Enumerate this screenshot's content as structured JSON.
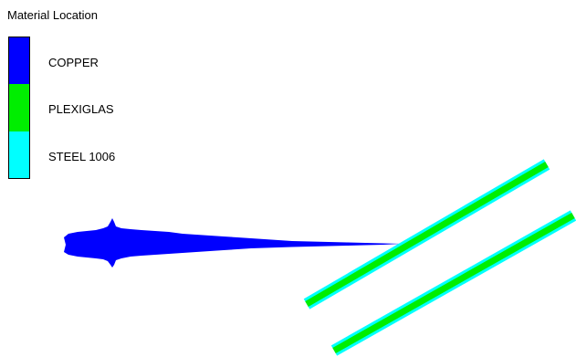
{
  "legend": {
    "title": "Material Location",
    "items": [
      {
        "label": "COPPER",
        "color": "#0000ff"
      },
      {
        "label": "PLEXIGLAS",
        "color": "#00ee00"
      },
      {
        "label": "STEEL 1006",
        "color": "#00ffff"
      }
    ]
  },
  "colors": {
    "background": "#ffffff",
    "jet": "#0000ff",
    "plate_core": "#00ee00",
    "plate_edge": "#00ffff"
  },
  "scene": {
    "objects": [
      {
        "name": "copper-jet",
        "material": "COPPER"
      },
      {
        "name": "upper-plate",
        "core_material": "PLEXIGLAS",
        "edge_material": "STEEL 1006"
      },
      {
        "name": "lower-plate",
        "core_material": "PLEXIGLAS",
        "edge_material": "STEEL 1006"
      }
    ]
  }
}
